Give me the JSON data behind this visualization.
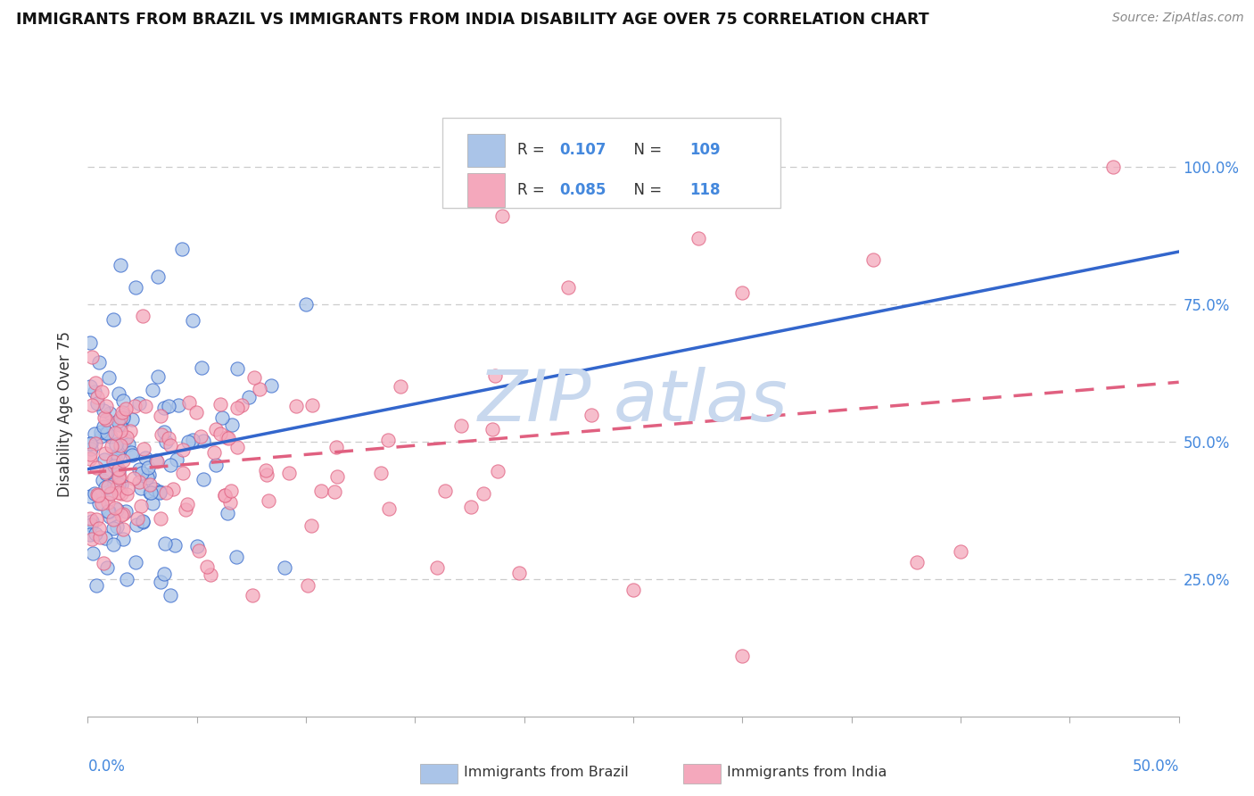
{
  "title": "IMMIGRANTS FROM BRAZIL VS IMMIGRANTS FROM INDIA DISABILITY AGE OVER 75 CORRELATION CHART",
  "source": "Source: ZipAtlas.com",
  "ylabel": "Disability Age Over 75",
  "xlim": [
    0.0,
    0.5
  ],
  "ylim": [
    0.0,
    1.1
  ],
  "brazil_R": 0.107,
  "brazil_N": 109,
  "india_R": 0.085,
  "india_N": 118,
  "brazil_color": "#aac4e8",
  "india_color": "#f4a8bc",
  "brazil_line_color": "#3366cc",
  "india_line_color": "#e06080",
  "watermark": "ZIP atlas",
  "watermark_color": "#c8d8ee",
  "axis_label_color": "#4488dd",
  "grid_color": "#cccccc",
  "title_color": "#111111",
  "source_color": "#888888"
}
